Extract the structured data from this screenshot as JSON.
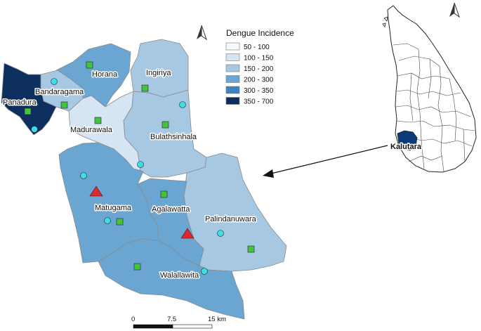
{
  "map": {
    "legend": {
      "title": "Dengue Incidence",
      "classes": [
        {
          "label": "50 - 100",
          "color": "#f7fbff"
        },
        {
          "label": "100 - 150",
          "color": "#d6e5f4"
        },
        {
          "label": "150 - 200",
          "color": "#a6c8e2"
        },
        {
          "label": "200 - 300",
          "color": "#6ba6d3"
        },
        {
          "label": "300 - 350",
          "color": "#3d82c1"
        },
        {
          "label": "350 - 700",
          "color": "#0d2f60"
        }
      ]
    },
    "regions": [
      {
        "id": "panadura",
        "label": "Panadura",
        "class": "350 - 700"
      },
      {
        "id": "bandaragama",
        "label": "Bandaragama",
        "class": "150 - 200"
      },
      {
        "id": "horana",
        "label": "Horana",
        "class": "200 - 300"
      },
      {
        "id": "ingiriya",
        "label": "Ingiriya",
        "class": "150 - 200"
      },
      {
        "id": "madurawala",
        "label": "Madurawala",
        "class": "100 - 150"
      },
      {
        "id": "bulathsinhala",
        "label": "Bulathsinhala",
        "class": "150 - 200"
      },
      {
        "id": "matugama",
        "label": "Matugama",
        "class": "200 - 300"
      },
      {
        "id": "agalawatta",
        "label": "Agalawatta",
        "class": "200 - 300"
      },
      {
        "id": "palindanuwara",
        "label": "Palindanuwara",
        "class": "150 - 200"
      },
      {
        "id": "walallawita",
        "label": "Walallawita",
        "class": "200 - 300"
      }
    ],
    "marker_colors": {
      "square": "#43c43b",
      "circle": "#3ddde8",
      "triangle": "#e3262d"
    },
    "scale_bar": {
      "labels": [
        "0",
        "7.5",
        "15 km"
      ]
    },
    "inset": {
      "label": "Kalutara",
      "highlight_color": "#0d3a78"
    }
  }
}
